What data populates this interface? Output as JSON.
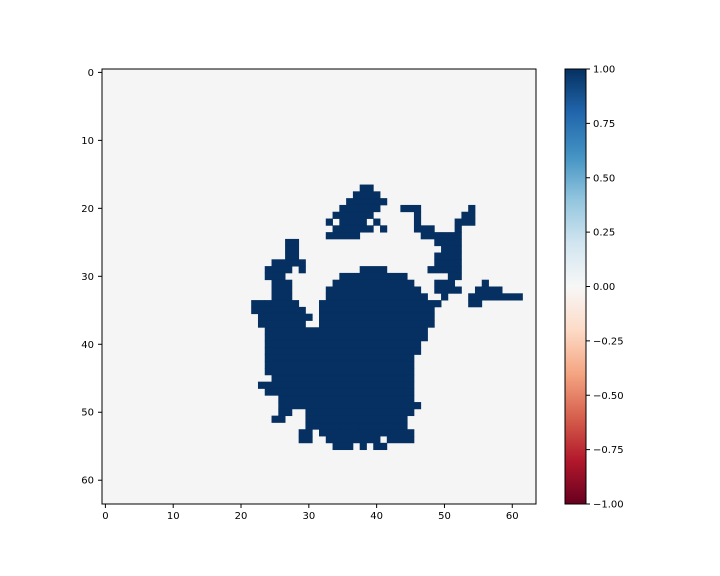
{
  "chart_data": {
    "type": "heatmap",
    "grid_size": [
      64,
      64
    ],
    "colormap": "RdBu",
    "value_range": [
      -1,
      1
    ],
    "background_value": 0,
    "colors": {
      "mask_fill": "#053061",
      "background_fill": "#f5f5f5",
      "colorbar_stops": [
        "#67001f",
        "#b2182b",
        "#d6604d",
        "#f4a582",
        "#fddbc7",
        "#f7f7f7",
        "#d1e5f0",
        "#92c5de",
        "#4393c3",
        "#2166ac",
        "#053061"
      ]
    },
    "x_ticks": [
      "0",
      "10",
      "20",
      "30",
      "40",
      "50",
      "60"
    ],
    "y_ticks": [
      "0",
      "10",
      "20",
      "30",
      "40",
      "50",
      "60"
    ],
    "colorbar_ticks": [
      "1.00",
      "0.75",
      "0.50",
      "0.25",
      "0.00",
      "−0.25",
      "−0.50",
      "−0.75",
      "−1.00"
    ],
    "filled_cells_by_row": {
      "17": [
        [
          38,
          39
        ]
      ],
      "18": [
        [
          37,
          40
        ]
      ],
      "19": [
        [
          36,
          41
        ]
      ],
      "20": [
        [
          35,
          40
        ],
        [
          44,
          45
        ],
        [
          46,
          46
        ],
        [
          54,
          54
        ]
      ],
      "21": [
        [
          34,
          39
        ],
        [
          46,
          46
        ],
        [
          53,
          54
        ]
      ],
      "22": [
        [
          33,
          33
        ],
        [
          35,
          38
        ],
        [
          40,
          40
        ],
        [
          46,
          46
        ],
        [
          52,
          54
        ]
      ],
      "23": [
        [
          34,
          38
        ],
        [
          39,
          39
        ],
        [
          41,
          41
        ],
        [
          46,
          48
        ],
        [
          52,
          52
        ]
      ],
      "24": [
        [
          33,
          37
        ],
        [
          47,
          49
        ],
        [
          50,
          52
        ]
      ],
      "25": [
        [
          27,
          28
        ],
        [
          49,
          52
        ]
      ],
      "26": [
        [
          27,
          28
        ],
        [
          50,
          52
        ]
      ],
      "27": [
        [
          27,
          28
        ],
        [
          49,
          52
        ]
      ],
      "28": [
        [
          25,
          28
        ],
        [
          29,
          29
        ],
        [
          49,
          52
        ]
      ],
      "29": [
        [
          24,
          27
        ],
        [
          29,
          29
        ],
        [
          38,
          41
        ],
        [
          48,
          52
        ]
      ],
      "30": [
        [
          24,
          26
        ],
        [
          35,
          44
        ],
        [
          51,
          52
        ]
      ],
      "31": [
        [
          25,
          27
        ],
        [
          34,
          45
        ],
        [
          49,
          51
        ],
        [
          56,
          56
        ]
      ],
      "32": [
        [
          25,
          27
        ],
        [
          33,
          46
        ],
        [
          49,
          52
        ],
        [
          55,
          58
        ]
      ],
      "33": [
        [
          25,
          27
        ],
        [
          33,
          47
        ],
        [
          50,
          50
        ],
        [
          54,
          61
        ]
      ],
      "34": [
        [
          22,
          23
        ],
        [
          24,
          28
        ],
        [
          32,
          49
        ],
        [
          54,
          55
        ]
      ],
      "35": [
        [
          22,
          29
        ],
        [
          32,
          48
        ]
      ],
      "36": [
        [
          23,
          30
        ],
        [
          32,
          48
        ]
      ],
      "37": [
        [
          23,
          29
        ],
        [
          32,
          48
        ]
      ],
      "38": [
        [
          24,
          47
        ]
      ],
      "39": [
        [
          24,
          47
        ]
      ],
      "40": [
        [
          24,
          46
        ]
      ],
      "41": [
        [
          24,
          46
        ]
      ],
      "42": [
        [
          24,
          45
        ]
      ],
      "43": [
        [
          24,
          45
        ]
      ],
      "44": [
        [
          24,
          45
        ]
      ],
      "45": [
        [
          25,
          45
        ]
      ],
      "46": [
        [
          23,
          45
        ]
      ],
      "47": [
        [
          24,
          45
        ]
      ],
      "48": [
        [
          26,
          45
        ]
      ],
      "49": [
        [
          26,
          46
        ]
      ],
      "50": [
        [
          26,
          27
        ],
        [
          30,
          45
        ]
      ],
      "51": [
        [
          25,
          26
        ],
        [
          30,
          44
        ]
      ],
      "52": [
        [
          30,
          34
        ],
        [
          35,
          37
        ],
        [
          38,
          44
        ]
      ],
      "53": [
        [
          29,
          30
        ],
        [
          32,
          41
        ],
        [
          42,
          45
        ]
      ],
      "54": [
        [
          29,
          30
        ],
        [
          33,
          40
        ],
        [
          42,
          45
        ]
      ],
      "55": [
        [
          34,
          36
        ],
        [
          38,
          38
        ],
        [
          40,
          41
        ]
      ]
    }
  }
}
